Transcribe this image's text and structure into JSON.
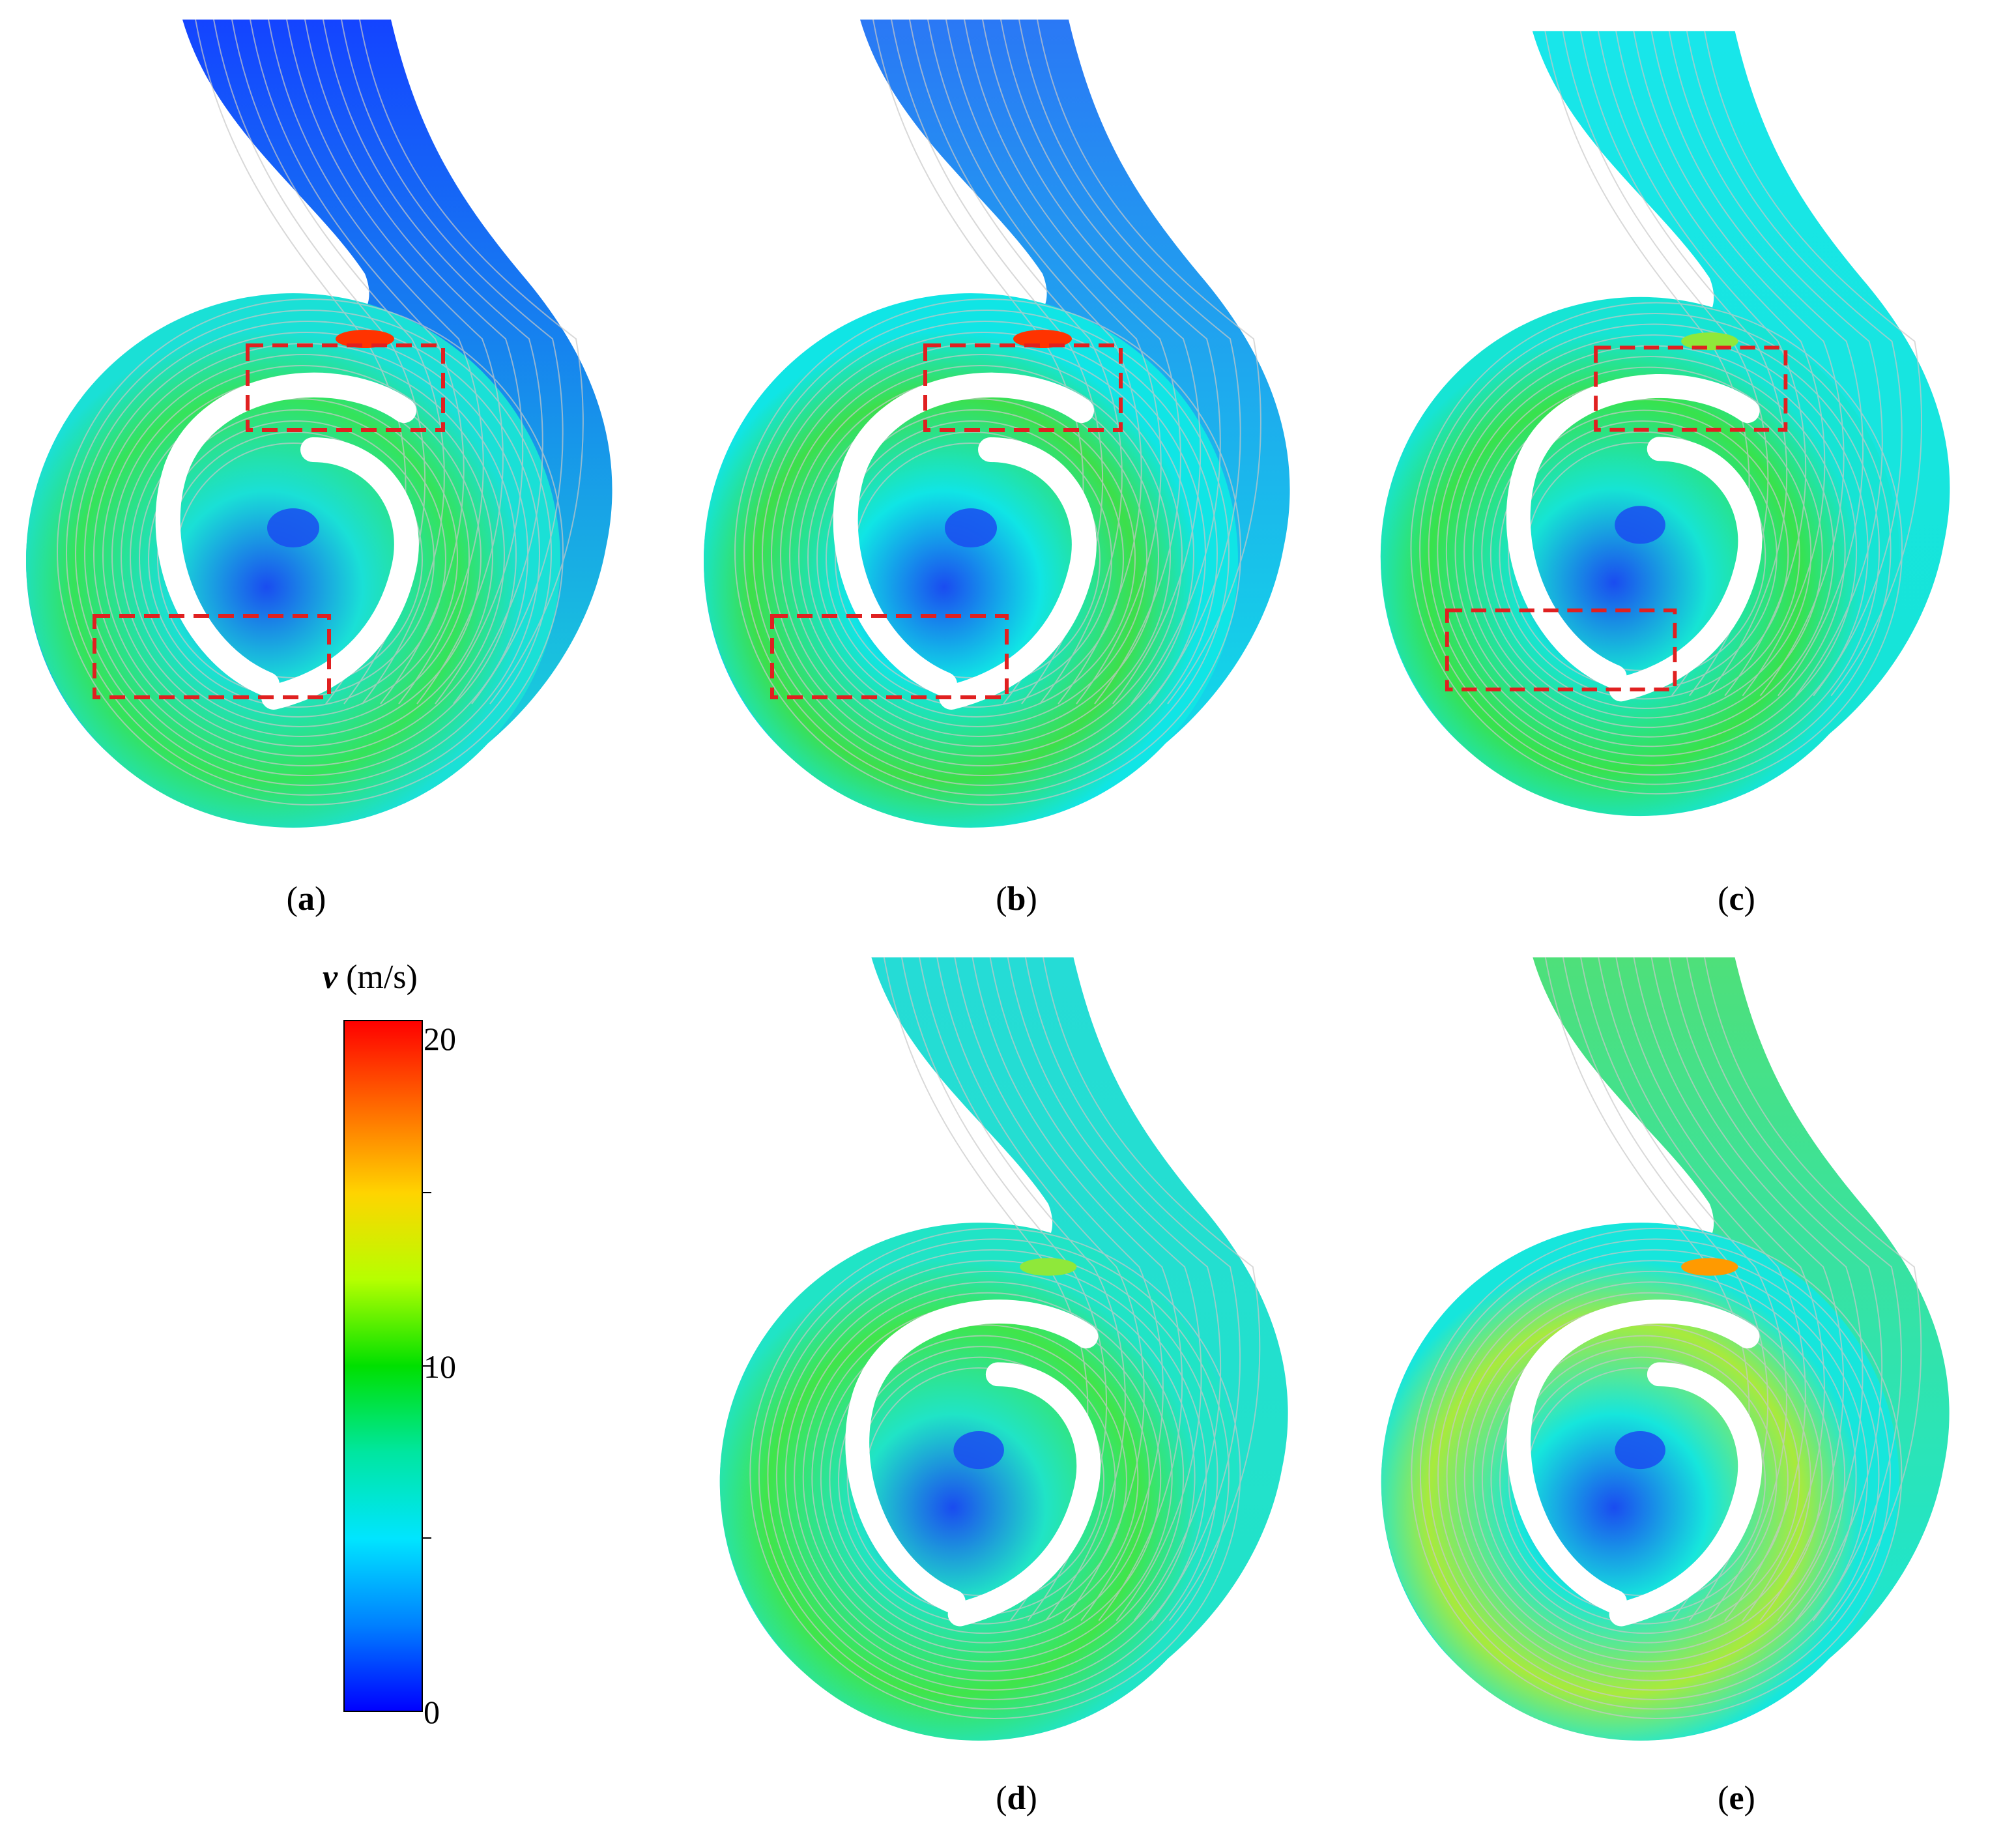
{
  "panels": [
    {
      "id": "a",
      "caption": "a",
      "recirc_boxes": 2,
      "tongue_color": "#ff3300",
      "inlet_color": "#1444ff",
      "impeller_color": "#35e35a",
      "volute_color": "#1ae0d6"
    },
    {
      "id": "b",
      "caption": "b",
      "recirc_boxes": 2,
      "tongue_color": "#ff3300",
      "inlet_color": "#2a78f5",
      "impeller_color": "#3ddf4a",
      "volute_color": "#10e5e5"
    },
    {
      "id": "c",
      "caption": "c",
      "recirc_boxes": 2,
      "tongue_color": "#8fe83a",
      "inlet_color": "#18e6ea",
      "impeller_color": "#38e24c",
      "volute_color": "#16e4d4"
    },
    {
      "id": "d",
      "caption": "d",
      "recirc_boxes": 0,
      "tongue_color": "#8fe83a",
      "inlet_color": "#25dcd6",
      "impeller_color": "#40e54a",
      "volute_color": "#20e4c6"
    },
    {
      "id": "e",
      "caption": "e",
      "recirc_boxes": 0,
      "tongue_color": "#ff9a00",
      "inlet_color": "#4ee07a",
      "impeller_color": "#a8ea3c",
      "volute_color": "#16e6dc"
    }
  ],
  "legend": {
    "symbol": "v",
    "unit": " (m/s)",
    "ticks": [
      "20",
      "10",
      "0"
    ],
    "colors": [
      "#ff0000",
      "#ff6a00",
      "#ffd400",
      "#b6ff00",
      "#00e000",
      "#00e6a0",
      "#00e5ff",
      "#0080ff",
      "#0000ff"
    ]
  },
  "colors": {
    "recirc_box": "#e02020",
    "streamline": "#c8c8c8",
    "blade": "#ffffff",
    "low_velocity": "#1a4cf0"
  }
}
